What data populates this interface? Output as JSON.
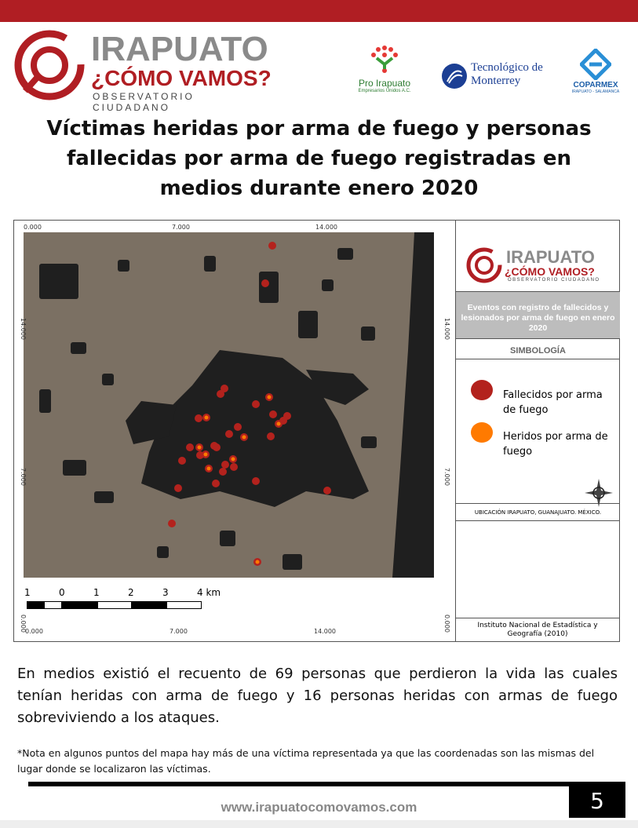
{
  "header": {
    "logo": {
      "line1": "IRAPUATO",
      "line2": "¿CÓMO VAMOS?",
      "line3": "OBSERVATORIO CIUDADANO"
    },
    "partners": [
      {
        "name": "Pro Irapuato",
        "sub": "Empresarios Unidos A.C."
      },
      {
        "name": "Tecnológico de Monterrey"
      },
      {
        "name": "COPARMEX",
        "sub": "IRAPUATO - SALAMANCA"
      }
    ]
  },
  "title": "Víctimas heridas por arma de fuego y personas fallecidas por arma de fuego registradas en medios durante enero 2020",
  "map": {
    "top_ticks": [
      "0.000",
      "7.000",
      "14.000"
    ],
    "bottom_ticks": [
      "0.000",
      "7.000",
      "14.000"
    ],
    "left_ticks": [
      "14.000",
      "7.000",
      "0.000"
    ],
    "right_ticks": [
      "14.000",
      "7.000",
      "0.000"
    ],
    "scale": {
      "labels": [
        "1",
        "0",
        "1",
        "2",
        "3",
        "4 km"
      ]
    },
    "colors": {
      "land": "#7b7063",
      "urban": "#1f1f1f",
      "fallecidos": "#b3221d",
      "heridos": "#ff7a00"
    }
  },
  "panel": {
    "logo": {
      "line1": "IRAPUATO",
      "line2": "¿CÓMO VAMOS?",
      "line3": "OBSERVATORIO CIUDADANO"
    },
    "subtitle": "Eventos con registro de fallecidos y lesionados por arma de fuego en enero 2020",
    "symbology": "SIMBOLOGÍA",
    "legend": [
      {
        "label": "Fallecidos por arma de fuego",
        "color": "#b3221d"
      },
      {
        "label": "Heridos por arma de fuego",
        "color": "#ff7a00"
      }
    ],
    "location": "UBICACIÓN IRAPUATO, GUANAJUATO. MÉXICO.",
    "source": "Instituto Nacional de Estadística y Geografía (2010)"
  },
  "body_text": "En medios existió el recuento de 69  personas que perdieron la vida las cuales tenían heridas con arma de fuego y 16 personas heridas con armas de fuego sobreviviendo a los ataques.",
  "note": "*Nota en algunos puntos del mapa hay más de una víctima representada ya que las coordenadas son las mismas del lugar donde se localizaron las víctimas.",
  "footer": {
    "url": "www.irapuatocomovamos.com",
    "page": "5"
  }
}
